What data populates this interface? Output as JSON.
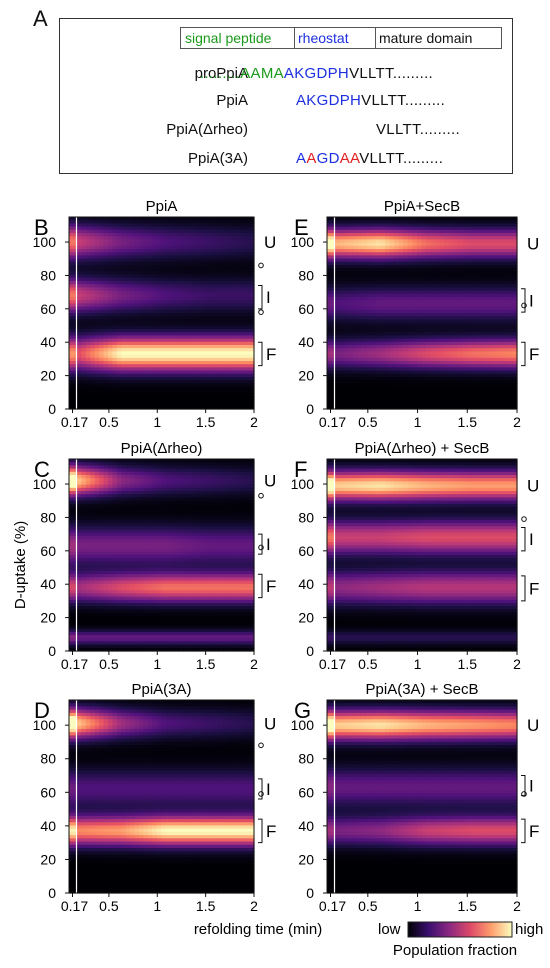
{
  "panel_a": {
    "letter": "A",
    "legend": {
      "signal": "signal peptide",
      "rheostat": "rheostat",
      "mature": "mature domain"
    },
    "rows": [
      {
        "name": "proPpiA",
        "segments": [
          {
            "text": ".........AAMA",
            "color": "green"
          },
          {
            "text": "AKGDPH",
            "color": "blue"
          },
          {
            "text": "VLLTT.........",
            "color": "black"
          }
        ]
      },
      {
        "name": "PpiA",
        "segments": [
          {
            "text": "AKGDPH",
            "color": "blue"
          },
          {
            "text": "VLLTT.........",
            "color": "black"
          }
        ]
      },
      {
        "name": "PpiA(Δrheo)",
        "segments": [
          {
            "text": "VLLTT.........",
            "color": "black"
          }
        ]
      },
      {
        "name": "PpiA(3A)",
        "segments": [
          {
            "text": "A",
            "color": "blue"
          },
          {
            "text": "A",
            "color": "red"
          },
          {
            "text": "GD",
            "color": "blue"
          },
          {
            "text": "AA",
            "color": "red"
          },
          {
            "text": "VLLTT.........",
            "color": "black"
          }
        ]
      }
    ]
  },
  "colors": {
    "green": "#1a9a1a",
    "blue": "#1d2fe0",
    "red": "#e0201e",
    "black": "#111111"
  },
  "shared_axes": {
    "ylabel": "D-uptake (%)",
    "xlabel": "refolding time (min)",
    "colorbar_low": "low",
    "colorbar_high": "high",
    "colorbar_label": "Population fraction",
    "colormap": "magma"
  },
  "chart_data": [
    {
      "panel": "B",
      "type": "heatmap",
      "title": "PpiA",
      "x_range": [
        0.17,
        2
      ],
      "x_ticks": [
        "0.17",
        "0.5",
        "1",
        "1.5",
        "2"
      ],
      "ylim": [
        0,
        115
      ],
      "y_ticks": [
        "0",
        "20",
        "40",
        "60",
        "80",
        "100"
      ],
      "bands": [
        {
          "y": 100,
          "width": 7,
          "intensity": [
            0.55,
            0.35,
            0.25,
            0.2,
            0.15
          ]
        },
        {
          "y": 68,
          "width": 7,
          "intensity": [
            0.55,
            0.35,
            0.25,
            0.2,
            0.2
          ]
        },
        {
          "y": 33,
          "width": 7,
          "intensity": [
            0.6,
            1.0,
            1.0,
            1.0,
            1.0
          ]
        }
      ],
      "labels": [
        {
          "text": "U",
          "y": 100
        },
        {
          "text": "I",
          "y_range": [
            60,
            74
          ]
        },
        {
          "text": "F",
          "y_range": [
            26,
            40
          ]
        }
      ],
      "circles_y": [
        86,
        58
      ]
    },
    {
      "panel": "E",
      "type": "heatmap",
      "title": "PpiA+SecB",
      "x_range": [
        0.17,
        2
      ],
      "x_ticks": [
        "0.17",
        "0.5",
        "1",
        "1.5",
        "2"
      ],
      "ylim": [
        0,
        115
      ],
      "y_ticks": [
        "0",
        "20",
        "40",
        "60",
        "80",
        "100"
      ],
      "bands": [
        {
          "y": 99,
          "width": 6,
          "intensity": [
            0.85,
            0.95,
            0.7,
            0.6,
            0.6
          ]
        },
        {
          "y": 63,
          "width": 7,
          "intensity": [
            0.25,
            0.3,
            0.3,
            0.3,
            0.3
          ]
        },
        {
          "y": 33,
          "width": 6,
          "intensity": [
            0.35,
            0.45,
            0.6,
            0.7,
            0.75
          ]
        }
      ],
      "labels": [
        {
          "text": "U",
          "y": 99
        },
        {
          "text": "I",
          "y_range": [
            58,
            72
          ]
        },
        {
          "text": "F",
          "y_range": [
            26,
            40
          ]
        }
      ],
      "circles_y": [
        62
      ]
    },
    {
      "panel": "C",
      "type": "heatmap",
      "title": "PpiA(Δrheo)",
      "x_range": [
        0.17,
        2
      ],
      "x_ticks": [
        "0.17",
        "0.5",
        "1",
        "1.5",
        "2"
      ],
      "ylim": [
        0,
        115
      ],
      "y_ticks": [
        "0",
        "20",
        "40",
        "60",
        "80",
        "100"
      ],
      "bands": [
        {
          "y": 102,
          "width": 6,
          "intensity": [
            0.9,
            0.4,
            0.25,
            0.2,
            0.15
          ]
        },
        {
          "y": 63,
          "width": 8,
          "intensity": [
            0.35,
            0.35,
            0.35,
            0.3,
            0.3
          ]
        },
        {
          "y": 38,
          "width": 6,
          "intensity": [
            0.45,
            0.6,
            0.7,
            0.7,
            0.7
          ]
        },
        {
          "y": 8,
          "width": 3,
          "intensity": [
            0.3,
            0.3,
            0.3,
            0.3,
            0.3
          ]
        }
      ],
      "labels": [
        {
          "text": "U",
          "y": 102
        },
        {
          "text": "I",
          "y_range": [
            58,
            70
          ]
        },
        {
          "text": "F",
          "y_range": [
            32,
            46
          ]
        }
      ],
      "circles_y": [
        93,
        62
      ]
    },
    {
      "panel": "F",
      "type": "heatmap",
      "title": "PpiA(Δrheo) + SecB",
      "x_range": [
        0.17,
        2
      ],
      "x_ticks": [
        "0.17",
        "0.5",
        "1",
        "1.5",
        "2"
      ],
      "ylim": [
        0,
        115
      ],
      "y_ticks": [
        "0",
        "20",
        "40",
        "60",
        "80",
        "100"
      ],
      "bands": [
        {
          "y": 99,
          "width": 6,
          "intensity": [
            0.9,
            0.95,
            0.85,
            0.8,
            0.8
          ]
        },
        {
          "y": 68,
          "width": 7,
          "intensity": [
            0.55,
            0.55,
            0.6,
            0.6,
            0.6
          ]
        },
        {
          "y": 38,
          "width": 7,
          "intensity": [
            0.4,
            0.45,
            0.5,
            0.5,
            0.5
          ]
        },
        {
          "y": 8,
          "width": 3,
          "intensity": [
            0.15,
            0.15,
            0.15,
            0.15,
            0.15
          ]
        }
      ],
      "labels": [
        {
          "text": "U",
          "y": 99
        },
        {
          "text": "I",
          "y_range": [
            60,
            74
          ]
        },
        {
          "text": "F",
          "y_range": [
            30,
            45
          ]
        }
      ],
      "circles_y": [
        79
      ]
    },
    {
      "panel": "D",
      "type": "heatmap",
      "title": "PpiA(3A)",
      "x_range": [
        0.17,
        2
      ],
      "x_ticks": [
        "0.17",
        "0.5",
        "1",
        "1.5",
        "2"
      ],
      "ylim": [
        0,
        115
      ],
      "y_ticks": [
        "0",
        "20",
        "40",
        "60",
        "80",
        "100"
      ],
      "bands": [
        {
          "y": 101,
          "width": 6,
          "intensity": [
            0.9,
            0.45,
            0.25,
            0.2,
            0.15
          ]
        },
        {
          "y": 62,
          "width": 8,
          "intensity": [
            0.25,
            0.25,
            0.25,
            0.25,
            0.25
          ]
        },
        {
          "y": 37,
          "width": 6,
          "intensity": [
            0.75,
            0.8,
            1.0,
            1.0,
            1.0
          ]
        }
      ],
      "labels": [
        {
          "text": "U",
          "y": 101
        },
        {
          "text": "I",
          "y_range": [
            56,
            68
          ]
        },
        {
          "text": "F",
          "y_range": [
            30,
            44
          ]
        }
      ],
      "circles_y": [
        88,
        59
      ]
    },
    {
      "panel": "G",
      "type": "heatmap",
      "title": "PpiA(3A) + SecB",
      "x_range": [
        0.17,
        2
      ],
      "x_ticks": [
        "0.17",
        "0.5",
        "1",
        "1.5",
        "2"
      ],
      "ylim": [
        0,
        115
      ],
      "y_ticks": [
        "0",
        "20",
        "40",
        "60",
        "80",
        "100"
      ],
      "bands": [
        {
          "y": 100,
          "width": 6,
          "intensity": [
            0.9,
            0.95,
            0.85,
            0.8,
            0.75
          ]
        },
        {
          "y": 63,
          "width": 8,
          "intensity": [
            0.3,
            0.3,
            0.3,
            0.3,
            0.3
          ]
        },
        {
          "y": 37,
          "width": 6,
          "intensity": [
            0.35,
            0.4,
            0.55,
            0.6,
            0.6
          ]
        }
      ],
      "labels": [
        {
          "text": "U",
          "y": 100
        },
        {
          "text": "I",
          "y_range": [
            58,
            70
          ]
        },
        {
          "text": "F",
          "y_range": [
            30,
            44
          ]
        }
      ],
      "circles_y": [
        59
      ]
    }
  ]
}
